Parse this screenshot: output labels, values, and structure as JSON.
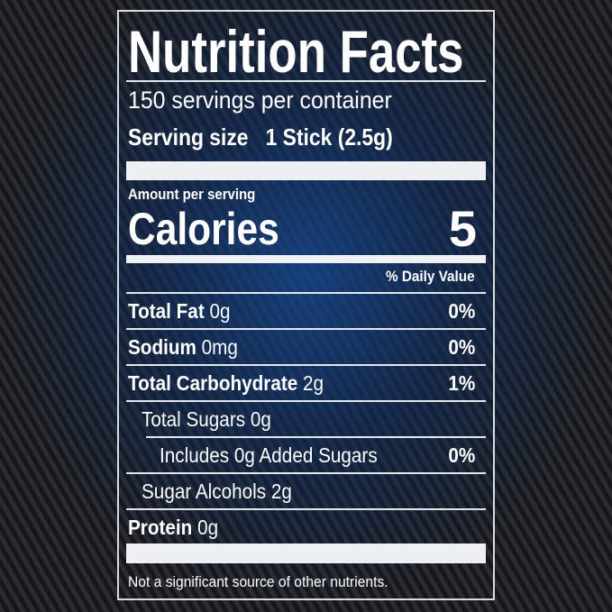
{
  "title": "Nutrition Facts",
  "servings": "150 servings per container",
  "serving_size": {
    "label": "Serving size",
    "value": "1 Stick (2.5g)"
  },
  "amount_per_serving": "Amount per serving",
  "calories": {
    "label": "Calories",
    "value": "5"
  },
  "daily_value_header": "% Daily Value",
  "rows": [
    {
      "name": "Total Fat",
      "amount": "0g",
      "dv": "0%"
    },
    {
      "name": "Sodium",
      "amount": "0mg",
      "dv": "0%"
    },
    {
      "name": "Total Carbohydrate",
      "amount": "2g",
      "dv": "1%"
    },
    {
      "name": "Total Sugars 0g"
    },
    {
      "name": "Includes 0g Added Sugars",
      "dv": "0%"
    },
    {
      "name": "Sugar Alcohols 2g"
    },
    {
      "name": "Protein",
      "amount": "0g"
    }
  ],
  "footnote": "Not a significant source of other nutrients."
}
